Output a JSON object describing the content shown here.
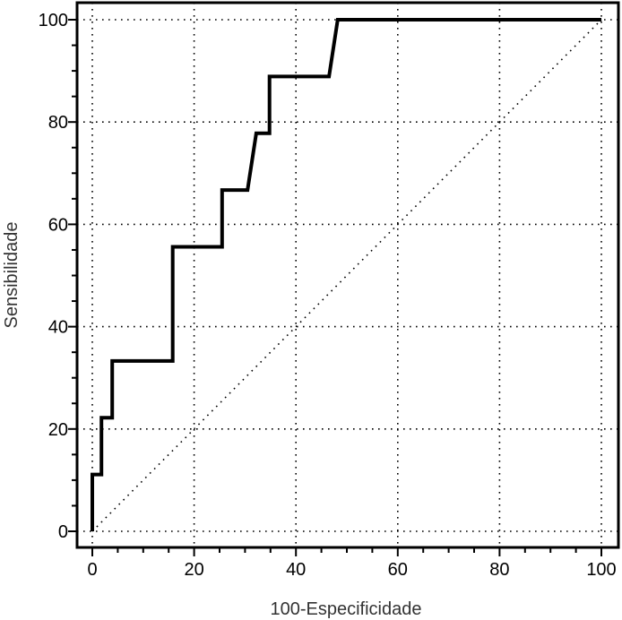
{
  "chart_data": {
    "type": "line",
    "title": "",
    "xlabel": "100-Especificidade",
    "ylabel": "Sensibilidade",
    "xlim": [
      0,
      100
    ],
    "ylim": [
      0,
      100
    ],
    "x_ticks": [
      "0",
      "20",
      "40",
      "60",
      "80",
      "100"
    ],
    "y_ticks": [
      "0",
      "20",
      "40",
      "60",
      "80",
      "100"
    ],
    "grid": true,
    "grid_style": "dotted",
    "legend": "none",
    "series": [
      {
        "style": "step",
        "color": "#000000",
        "points": [
          [
            0,
            0
          ],
          [
            0,
            11.1
          ],
          [
            1.8,
            11.1
          ],
          [
            1.8,
            22.2
          ],
          [
            3.9,
            22.2
          ],
          [
            3.9,
            33.3
          ],
          [
            15.8,
            33.3
          ],
          [
            15.8,
            55.6
          ],
          [
            25.5,
            55.6
          ],
          [
            25.5,
            66.7
          ],
          [
            30.5,
            66.7
          ],
          [
            32.2,
            77.8
          ],
          [
            34.8,
            77.8
          ],
          [
            34.8,
            88.9
          ],
          [
            46.5,
            88.9
          ],
          [
            48.2,
            100
          ],
          [
            100,
            100
          ]
        ]
      },
      {
        "style": "dotted-diagonal",
        "color": "#000000",
        "points": [
          [
            0,
            0
          ],
          [
            100,
            100
          ]
        ]
      }
    ]
  }
}
